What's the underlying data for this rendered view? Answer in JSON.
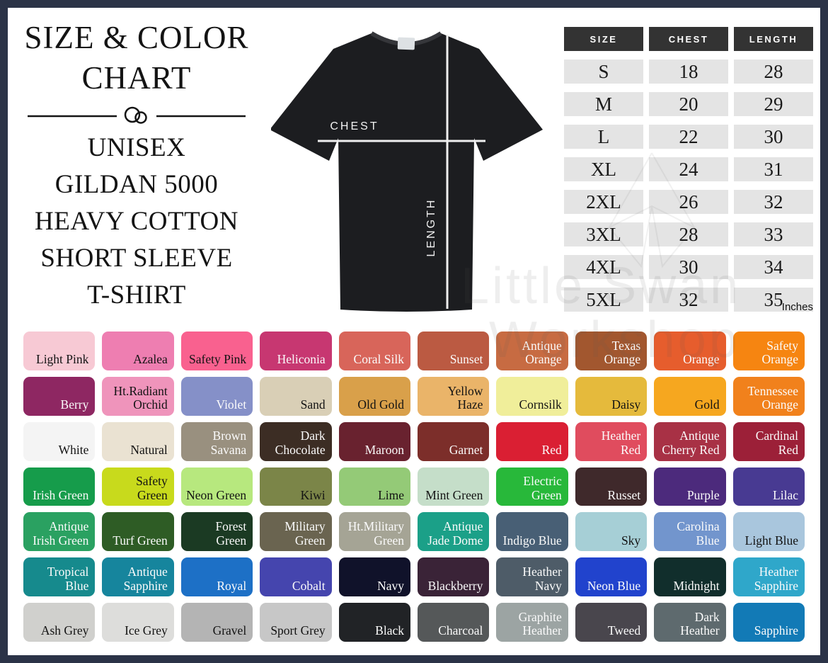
{
  "page": {
    "border_color": "#2b3347",
    "background": "#ffffff"
  },
  "header": {
    "title_line1": "SIZE & COLOR",
    "title_line2": "CHART",
    "subtitle_lines": [
      "UNISEX",
      "GILDAN 5000",
      "HEAVY COTTON",
      "SHORT SLEEVE",
      "T-SHIRT"
    ]
  },
  "tshirt": {
    "color": "#1c1d20",
    "chest_label": "CHEST",
    "length_label": "LENGTH"
  },
  "size_table": {
    "columns": [
      "SIZE",
      "CHEST",
      "LENGTH"
    ],
    "rows": [
      [
        "S",
        "18",
        "28"
      ],
      [
        "M",
        "20",
        "29"
      ],
      [
        "L",
        "22",
        "30"
      ],
      [
        "XL",
        "24",
        "31"
      ],
      [
        "2XL",
        "26",
        "32"
      ],
      [
        "3XL",
        "28",
        "33"
      ],
      [
        "4XL",
        "30",
        "34"
      ],
      [
        "5XL",
        "32",
        "35"
      ]
    ],
    "unit_note": "Inches",
    "header_bg": "#333333",
    "header_text": "#ffffff",
    "cell_bg": "#e4e4e4",
    "cell_text": "#1a1a1a"
  },
  "watermark": {
    "line1": "Little Swan",
    "line2": "Workshop"
  },
  "color_grid": {
    "columns": 10,
    "swatches": [
      {
        "name": "Light Pink",
        "hex": "#f7c9d4",
        "text": "dark"
      },
      {
        "name": "Azalea",
        "hex": "#ee7eb1",
        "text": "dark"
      },
      {
        "name": "Safety Pink",
        "hex": "#f9618f",
        "text": "dark"
      },
      {
        "name": "Heliconia",
        "hex": "#c73771",
        "text": "light"
      },
      {
        "name": "Coral Silk",
        "hex": "#d8655a",
        "text": "light"
      },
      {
        "name": "Sunset",
        "hex": "#bb5a42",
        "text": "light"
      },
      {
        "name": "Antique Orange",
        "hex": "#c76b42",
        "text": "light"
      },
      {
        "name": "Texas Orange",
        "hex": "#a2572f",
        "text": "light"
      },
      {
        "name": "Orange",
        "hex": "#e65d2d",
        "text": "light"
      },
      {
        "name": "Safety Orange",
        "hex": "#f68511",
        "text": "light"
      },
      {
        "name": "Berry",
        "hex": "#8e2762",
        "text": "light"
      },
      {
        "name": "Ht.Radiant Orchid",
        "hex": "#ef94bb",
        "text": "dark"
      },
      {
        "name": "Violet",
        "hex": "#8590c8",
        "text": "light"
      },
      {
        "name": "Sand",
        "hex": "#d9cfb6",
        "text": "dark"
      },
      {
        "name": "Old Gold",
        "hex": "#d9a04a",
        "text": "dark"
      },
      {
        "name": "Yellow Haze",
        "hex": "#eab469",
        "text": "dark"
      },
      {
        "name": "Cornsilk",
        "hex": "#f0ee9a",
        "text": "dark"
      },
      {
        "name": "Daisy",
        "hex": "#e5ba3c",
        "text": "dark"
      },
      {
        "name": "Gold",
        "hex": "#f6a71f",
        "text": "dark"
      },
      {
        "name": "Tennessee Orange",
        "hex": "#f1811c",
        "text": "light"
      },
      {
        "name": "White",
        "hex": "#f4f4f4",
        "text": "dark"
      },
      {
        "name": "Natural",
        "hex": "#eae2d2",
        "text": "dark"
      },
      {
        "name": "Brown Savana",
        "hex": "#99907f",
        "text": "light"
      },
      {
        "name": "Dark Chocolate",
        "hex": "#3c2d24",
        "text": "light"
      },
      {
        "name": "Maroon",
        "hex": "#69222f",
        "text": "light"
      },
      {
        "name": "Garnet",
        "hex": "#7c2e2a",
        "text": "light"
      },
      {
        "name": "Red",
        "hex": "#da1f33",
        "text": "light"
      },
      {
        "name": "Heather Red",
        "hex": "#e04c5e",
        "text": "light"
      },
      {
        "name": "Antique Cherry Red",
        "hex": "#a83145",
        "text": "light"
      },
      {
        "name": "Cardinal Red",
        "hex": "#9c2038",
        "text": "light"
      },
      {
        "name": "Irish Green",
        "hex": "#169c4b",
        "text": "light"
      },
      {
        "name": "Safety Green",
        "hex": "#c8da1c",
        "text": "dark"
      },
      {
        "name": "Neon Green",
        "hex": "#b7e87e",
        "text": "dark"
      },
      {
        "name": "Kiwi",
        "hex": "#7b8548",
        "text": "dark"
      },
      {
        "name": "Lime",
        "hex": "#94ca77",
        "text": "dark"
      },
      {
        "name": "Mint Green",
        "hex": "#c5dec9",
        "text": "dark"
      },
      {
        "name": "Electric Green",
        "hex": "#28b83a",
        "text": "light"
      },
      {
        "name": "Russet",
        "hex": "#3f292b",
        "text": "light"
      },
      {
        "name": "Purple",
        "hex": "#4c2a7c",
        "text": "light"
      },
      {
        "name": "Lilac",
        "hex": "#483a92",
        "text": "light"
      },
      {
        "name": "Antique Irish Green",
        "hex": "#2aa161",
        "text": "light"
      },
      {
        "name": "Turf Green",
        "hex": "#2e5c25",
        "text": "light"
      },
      {
        "name": "Forest Green",
        "hex": "#1b3a23",
        "text": "light"
      },
      {
        "name": "Military Green",
        "hex": "#6a6450",
        "text": "light"
      },
      {
        "name": "Ht.Military Green",
        "hex": "#a5a495",
        "text": "light"
      },
      {
        "name": "Antique Jade Dome",
        "hex": "#1ba088",
        "text": "light"
      },
      {
        "name": "Indigo Blue",
        "hex": "#485f75",
        "text": "light"
      },
      {
        "name": "Sky",
        "hex": "#a6cfd6",
        "text": "dark"
      },
      {
        "name": "Carolina Blue",
        "hex": "#7295cd",
        "text": "light"
      },
      {
        "name": "Light Blue",
        "hex": "#a9c6dd",
        "text": "dark"
      },
      {
        "name": "Tropical Blue",
        "hex": "#168a8d",
        "text": "light"
      },
      {
        "name": "Antique Sapphire",
        "hex": "#16859d",
        "text": "light"
      },
      {
        "name": "Royal",
        "hex": "#1d70c6",
        "text": "light"
      },
      {
        "name": "Cobalt",
        "hex": "#4545ae",
        "text": "light"
      },
      {
        "name": "Navy",
        "hex": "#10122a",
        "text": "light"
      },
      {
        "name": "Blackberry",
        "hex": "#3a2337",
        "text": "light"
      },
      {
        "name": "Heather Navy",
        "hex": "#4e5c68",
        "text": "light"
      },
      {
        "name": "Neon Blue",
        "hex": "#2143cd",
        "text": "light"
      },
      {
        "name": "Midnight",
        "hex": "#112e2c",
        "text": "light"
      },
      {
        "name": "Heather Sapphire",
        "hex": "#2fa7ca",
        "text": "light"
      },
      {
        "name": "Ash Grey",
        "hex": "#d0d0cd",
        "text": "dark"
      },
      {
        "name": "Ice Grey",
        "hex": "#dddddb",
        "text": "dark"
      },
      {
        "name": "Gravel",
        "hex": "#b4b4b4",
        "text": "dark"
      },
      {
        "name": "Sport Grey",
        "hex": "#c7c7c7",
        "text": "dark"
      },
      {
        "name": "Black",
        "hex": "#212326",
        "text": "light"
      },
      {
        "name": "Charcoal",
        "hex": "#555859",
        "text": "light"
      },
      {
        "name": "Graphite Heather",
        "hex": "#9ca4a3",
        "text": "light"
      },
      {
        "name": "Tweed",
        "hex": "#49464d",
        "text": "light"
      },
      {
        "name": "Dark Heather",
        "hex": "#5e6a6e",
        "text": "light"
      },
      {
        "name": "Sapphire",
        "hex": "#127ab6",
        "text": "light"
      }
    ]
  },
  "chart_data": {
    "type": "table",
    "title": "Size & Color Chart — Unisex Gildan 5000 Heavy Cotton Short Sleeve T-Shirt",
    "columns": [
      "SIZE",
      "CHEST",
      "LENGTH"
    ],
    "rows": [
      [
        "S",
        18,
        28
      ],
      [
        "M",
        20,
        29
      ],
      [
        "L",
        22,
        30
      ],
      [
        "XL",
        24,
        31
      ],
      [
        "2XL",
        26,
        32
      ],
      [
        "3XL",
        28,
        33
      ],
      [
        "4XL",
        30,
        34
      ],
      [
        "5XL",
        32,
        35
      ]
    ],
    "units": "Inches"
  }
}
